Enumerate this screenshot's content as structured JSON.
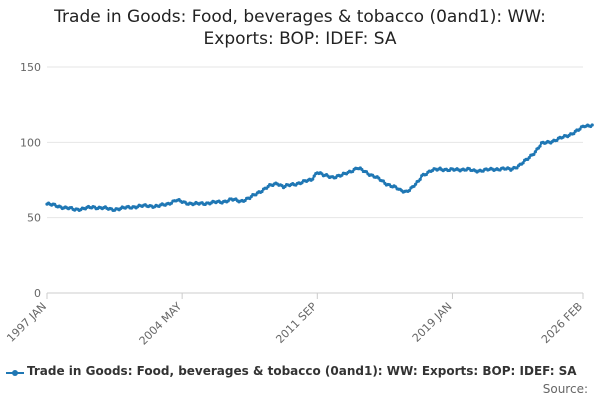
{
  "chart_data": {
    "type": "line",
    "title_lines": [
      "Trade in Goods: Food, beverages & tobacco (0and1): WW:",
      "Exports: BOP: IDEF: SA"
    ],
    "xlabel": "",
    "ylabel": "",
    "ylim": [
      0,
      150
    ],
    "yticks": [
      0,
      50,
      100,
      150
    ],
    "x_tick_labels": [
      "1997 JAN",
      "2004 MAY",
      "2011 SEP",
      "2019 JAN",
      "2026 FEB"
    ],
    "x_tick_months": [
      0,
      88,
      176,
      264,
      349
    ],
    "grid": true,
    "legend_position": "bottom",
    "series": [
      {
        "name": "Trade in Goods: Food, beverages & tobacco (0and1): WW: Exports: BOP: IDEF: SA",
        "color": "#1f77b4",
        "points": [
          [
            0,
            59
          ],
          [
            6,
            58
          ],
          [
            12,
            56.5
          ],
          [
            18,
            55.5
          ],
          [
            24,
            56
          ],
          [
            30,
            57
          ],
          [
            36,
            56.5
          ],
          [
            42,
            55.5
          ],
          [
            48,
            56
          ],
          [
            54,
            57
          ],
          [
            60,
            57.5
          ],
          [
            66,
            58
          ],
          [
            72,
            57.5
          ],
          [
            78,
            59
          ],
          [
            84,
            61.5
          ],
          [
            90,
            60
          ],
          [
            96,
            59
          ],
          [
            102,
            59.5
          ],
          [
            108,
            60
          ],
          [
            114,
            60.5
          ],
          [
            120,
            62
          ],
          [
            126,
            61
          ],
          [
            132,
            63
          ],
          [
            138,
            67
          ],
          [
            144,
            70.5
          ],
          [
            150,
            73
          ],
          [
            154,
            70.5
          ],
          [
            160,
            72
          ],
          [
            166,
            73.5
          ],
          [
            172,
            75
          ],
          [
            176,
            80.5
          ],
          [
            180,
            78
          ],
          [
            186,
            77
          ],
          [
            192,
            78
          ],
          [
            198,
            81
          ],
          [
            202,
            83
          ],
          [
            208,
            80
          ],
          [
            214,
            77
          ],
          [
            220,
            73
          ],
          [
            226,
            70.5
          ],
          [
            230,
            68
          ],
          [
            234,
            67.5
          ],
          [
            238,
            70
          ],
          [
            242,
            74
          ],
          [
            244,
            78
          ],
          [
            250,
            81
          ],
          [
            256,
            82.5
          ],
          [
            262,
            81.5
          ],
          [
            268,
            82
          ],
          [
            274,
            82
          ],
          [
            278,
            81
          ],
          [
            284,
            81.5
          ],
          [
            290,
            82
          ],
          [
            296,
            82.5
          ],
          [
            302,
            82
          ],
          [
            308,
            85
          ],
          [
            312,
            88
          ],
          [
            318,
            94
          ],
          [
            322,
            99
          ],
          [
            328,
            100.5
          ],
          [
            334,
            102.5
          ],
          [
            340,
            105
          ],
          [
            346,
            108
          ],
          [
            350,
            111
          ],
          [
            355,
            111.5
          ]
        ]
      }
    ],
    "source_label": "Source:"
  }
}
